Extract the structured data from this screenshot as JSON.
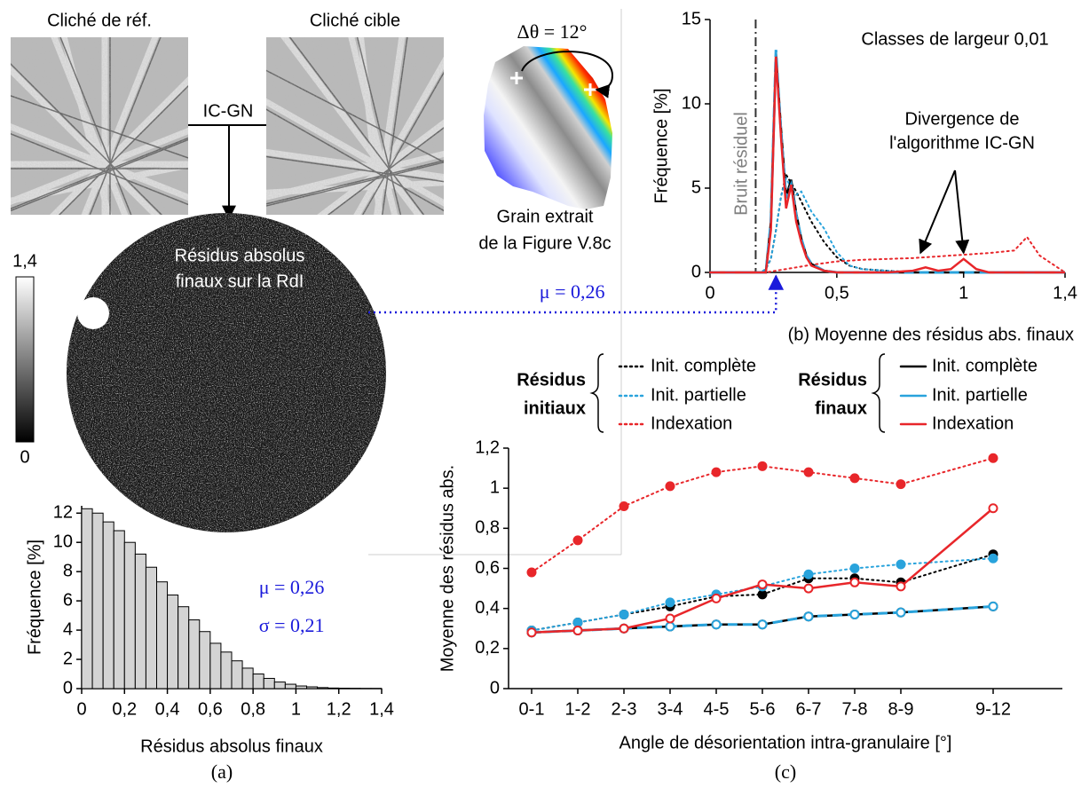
{
  "figure": {
    "ref_label": "Cliché de réf.",
    "target_label": "Cliché cible",
    "method": "IC-GN",
    "map_title_lines": [
      "Résidus absolus",
      "finaux sur la RdI"
    ],
    "colorbar": {
      "max_label": "1,4",
      "min_label": "0"
    },
    "grain_angle": "Δθ = 12°",
    "grain_caption_lines": [
      "Grain extrait",
      "de la Figure V.8c"
    ],
    "caption_a": "(a)"
  },
  "chart_data": [
    {
      "type": "histogram",
      "bins": [
        0,
        0.05,
        0.1,
        0.15,
        0.2,
        0.25,
        0.3,
        0.35,
        0.4,
        0.45,
        0.5,
        0.55,
        0.6,
        0.65,
        0.7,
        0.75,
        0.8,
        0.85,
        0.9,
        0.95,
        1,
        1.05,
        1.1,
        1.15,
        1.2,
        1.25,
        1.3,
        1.35,
        1.4
      ],
      "values": [
        12.3,
        12.0,
        11.4,
        10.8,
        10.0,
        9.2,
        8.3,
        7.3,
        6.4,
        5.6,
        4.7,
        3.9,
        3.1,
        2.5,
        1.9,
        1.4,
        1.0,
        0.7,
        0.45,
        0.3,
        0.18,
        0.12,
        0.07,
        0.04,
        0.03,
        0.02,
        0.01,
        0.01
      ],
      "color": "#d4d4d4",
      "xlim": [
        0,
        1.4
      ],
      "ylim": [
        0,
        12.5
      ],
      "xticks": [
        0,
        {
          "value": 0.2,
          "label": "0,2"
        },
        {
          "value": 0.4,
          "label": "0,4"
        },
        {
          "value": 0.6,
          "label": "0,6"
        },
        {
          "value": 0.8,
          "label": "0,8"
        },
        1,
        {
          "value": 1.2,
          "label": "1,2"
        },
        {
          "value": 1.4,
          "label": "1,4"
        }
      ],
      "yticks": [
        0,
        2,
        4,
        6,
        8,
        10,
        12
      ],
      "xlabel": "Résidus absolus finaux",
      "ylabel": "Fréquence [%]",
      "annotations": [
        "μ = 0,26",
        "σ = 0,21"
      ],
      "annotation_color": "#1a1adb"
    },
    {
      "type": "line",
      "x": [
        0,
        0.1,
        0.2,
        0.22,
        0.24,
        0.26,
        0.28,
        0.3,
        0.32,
        0.34,
        0.36,
        0.38,
        0.4,
        0.45,
        0.5,
        0.55,
        0.6,
        0.7,
        0.8,
        0.85,
        0.9,
        0.95,
        1,
        1.05,
        1.1,
        1.2,
        1.25,
        1.3,
        1.4
      ],
      "xlim": [
        0,
        1.4
      ],
      "ylim": [
        0,
        15
      ],
      "xticks": [
        0,
        {
          "value": 0.5,
          "label": "0,5"
        },
        1,
        {
          "value": 1.4,
          "label": "1,4"
        }
      ],
      "yticks": [
        0,
        5,
        10,
        15
      ],
      "ylabel": "Fréquence [%]",
      "caption": "(b) Moyenne des résidus abs. finaux",
      "note": "Classes de largeur 0,01",
      "annotation_lines": [
        "Divergence de",
        "l'algorithme IC-GN"
      ],
      "reference_line": {
        "x": 0.18,
        "label": "Bruit résiduel",
        "color": "#7f7f7f"
      },
      "mean_marker": {
        "x": 0.26,
        "label": "μ = 0,26",
        "color": "#1a1adb"
      },
      "series": [
        {
          "color": "#000000",
          "dash": "dotted",
          "values": [
            0,
            0,
            0,
            0.2,
            0.8,
            2.5,
            4.5,
            5.8,
            5.3,
            4.8,
            4.2,
            3.6,
            3.0,
            1.8,
            0.9,
            0.4,
            0.2,
            0.1,
            0,
            0,
            0,
            0,
            0,
            0,
            0,
            0,
            0,
            0,
            0
          ]
        },
        {
          "color": "#29a3dc",
          "dash": "dotted",
          "values": [
            0,
            0,
            0,
            0.2,
            0.8,
            2.5,
            4.5,
            5.6,
            5.0,
            4.6,
            4.8,
            4.2,
            3.6,
            2.6,
            1.2,
            0.4,
            0.2,
            0.1,
            0,
            0,
            0,
            0,
            0,
            0,
            0,
            0,
            0,
            0,
            0
          ]
        },
        {
          "color": "#e8262a",
          "dash": "dotted",
          "values": [
            0,
            0,
            0,
            0,
            0.05,
            0.1,
            0.15,
            0.2,
            0.25,
            0.3,
            0.35,
            0.4,
            0.45,
            0.55,
            0.65,
            0.7,
            0.75,
            0.8,
            0.85,
            0.9,
            0.95,
            1.0,
            1.05,
            1.1,
            1.15,
            1.3,
            2.1,
            1.0,
            0
          ]
        },
        {
          "color": "#000000",
          "dash": "solid",
          "values": [
            0,
            0,
            0,
            0,
            3,
            13,
            8.5,
            4.5,
            5.5,
            3.5,
            2,
            1,
            0.5,
            0.1,
            0,
            0,
            0,
            0,
            0,
            0,
            0,
            0,
            0,
            0,
            0,
            0,
            0,
            0,
            0
          ]
        },
        {
          "color": "#29a3dc",
          "dash": "dashed",
          "values": [
            0,
            0,
            0,
            0,
            3,
            13.2,
            8.3,
            4.4,
            5.2,
            3.4,
            2,
            1,
            0.5,
            0.1,
            0,
            0,
            0,
            0,
            0,
            0,
            0,
            0,
            0,
            0,
            0,
            0,
            0,
            0,
            0
          ]
        },
        {
          "color": "#e8262a",
          "dash": "solid",
          "values": [
            0,
            0,
            0,
            0,
            2.5,
            12.8,
            8,
            3.8,
            5.2,
            3,
            1.8,
            0.9,
            0.4,
            0.1,
            0,
            0,
            0,
            0,
            0.1,
            0.3,
            0.1,
            0.2,
            0.8,
            0.2,
            0,
            0,
            0,
            0,
            0
          ]
        }
      ]
    },
    {
      "type": "line",
      "x": [
        0.5,
        1.5,
        2.5,
        3.5,
        4.5,
        5.5,
        6.5,
        7.5,
        8.5,
        10.5
      ],
      "xlim": [
        0,
        12
      ],
      "ylim": [
        0,
        1.2
      ],
      "xticks": [
        {
          "value": 0.5,
          "label": "0-1"
        },
        {
          "value": 1.5,
          "label": "1-2"
        },
        {
          "value": 2.5,
          "label": "2-3"
        },
        {
          "value": 3.5,
          "label": "3-4"
        },
        {
          "value": 4.5,
          "label": "4-5"
        },
        {
          "value": 5.5,
          "label": "5-6"
        },
        {
          "value": 6.5,
          "label": "6-7"
        },
        {
          "value": 7.5,
          "label": "7-8"
        },
        {
          "value": 8.5,
          "label": "8-9"
        },
        {
          "value": 10.5,
          "label": "9-12"
        }
      ],
      "yticks": [
        0,
        {
          "value": 0.2,
          "label": "0,2"
        },
        {
          "value": 0.4,
          "label": "0,4"
        },
        {
          "value": 0.6,
          "label": "0,6"
        },
        {
          "value": 0.8,
          "label": "0,8"
        },
        1,
        {
          "value": 1.2,
          "label": "1,2"
        }
      ],
      "xlabel": "Angle de désorientation intra-granulaire [°]",
      "ylabel": "Moyenne des résidus abs.",
      "caption": "(c)",
      "series_groups": [
        {
          "title_lines": [
            "Résidus",
            "initiaux"
          ],
          "series": [
            {
              "name": "Init. complète",
              "color": "#000000",
              "dash": "dotted",
              "marker": "filled",
              "values": [
                0.29,
                0.33,
                0.37,
                0.41,
                0.46,
                0.47,
                0.55,
                0.55,
                0.53,
                0.67
              ]
            },
            {
              "name": "Init. partielle",
              "color": "#29a3dc",
              "dash": "dotted",
              "marker": "filled",
              "values": [
                0.29,
                0.33,
                0.37,
                0.43,
                0.47,
                0.51,
                0.57,
                0.6,
                0.62,
                0.65
              ]
            },
            {
              "name": "Indexation",
              "color": "#e8262a",
              "dash": "dotted",
              "marker": "filled",
              "values": [
                0.58,
                0.74,
                0.91,
                1.01,
                1.08,
                1.11,
                1.08,
                1.05,
                1.02,
                1.15
              ]
            }
          ]
        },
        {
          "title_lines": [
            "Résidus",
            "finaux"
          ],
          "series": [
            {
              "name": "Init. complète",
              "color": "#000000",
              "dash": "solid",
              "marker": "open",
              "values": [
                0.28,
                0.29,
                0.3,
                0.31,
                0.32,
                0.32,
                0.36,
                0.37,
                0.38,
                0.41
              ]
            },
            {
              "name": "Init. partielle",
              "color": "#29a3dc",
              "dash": "dashed",
              "marker": "open",
              "values": [
                0.28,
                0.29,
                0.3,
                0.31,
                0.32,
                0.32,
                0.36,
                0.37,
                0.38,
                0.41
              ]
            },
            {
              "name": "Indexation",
              "color": "#e8262a",
              "dash": "solid",
              "marker": "open",
              "values": [
                0.28,
                0.29,
                0.3,
                0.35,
                0.45,
                0.52,
                0.5,
                0.53,
                0.51,
                0.9
              ]
            }
          ]
        }
      ]
    }
  ]
}
